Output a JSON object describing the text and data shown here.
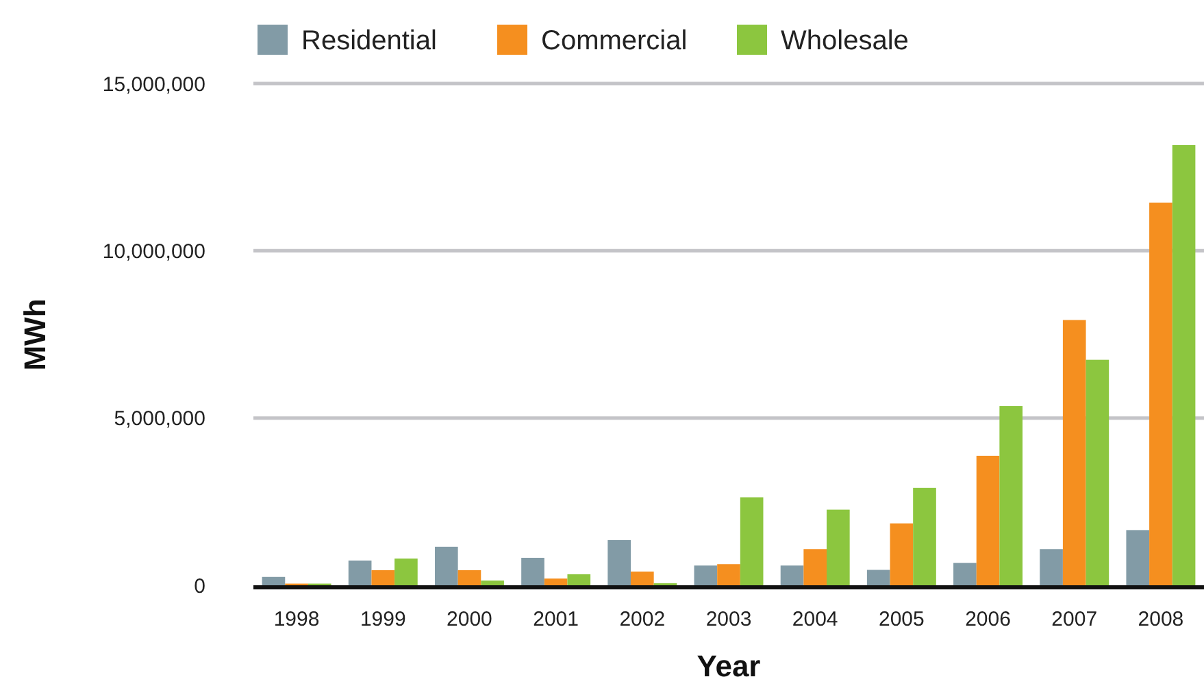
{
  "chart_data": {
    "type": "bar",
    "xlabel": "Year",
    "ylabel": "MWh",
    "categories": [
      "1998",
      "1999",
      "2000",
      "2001",
      "2002",
      "2003",
      "2004",
      "2005",
      "2006",
      "2007",
      "2008"
    ],
    "series": [
      {
        "name": "Residential",
        "color": "#829ba6",
        "values": [
          250000,
          740000,
          1150000,
          820000,
          1350000,
          590000,
          590000,
          460000,
          670000,
          1080000,
          1650000
        ]
      },
      {
        "name": "Commercial",
        "color": "#f58f1f",
        "values": [
          50000,
          450000,
          450000,
          200000,
          410000,
          630000,
          1080000,
          1850000,
          3870000,
          7930000,
          11440000
        ]
      },
      {
        "name": "Wholesale",
        "color": "#8cc63f",
        "values": [
          50000,
          800000,
          140000,
          330000,
          60000,
          2630000,
          2260000,
          2910000,
          5360000,
          6740000,
          13160000
        ]
      }
    ],
    "ylim": [
      0,
      15000000
    ],
    "yticks": [
      {
        "value": 0,
        "label": "0"
      },
      {
        "value": 5000000,
        "label": "5,000,000"
      },
      {
        "value": 10000000,
        "label": "10,000,000"
      },
      {
        "value": 15000000,
        "label": "15,000,000"
      }
    ],
    "grid": "y",
    "legend": "top left"
  }
}
